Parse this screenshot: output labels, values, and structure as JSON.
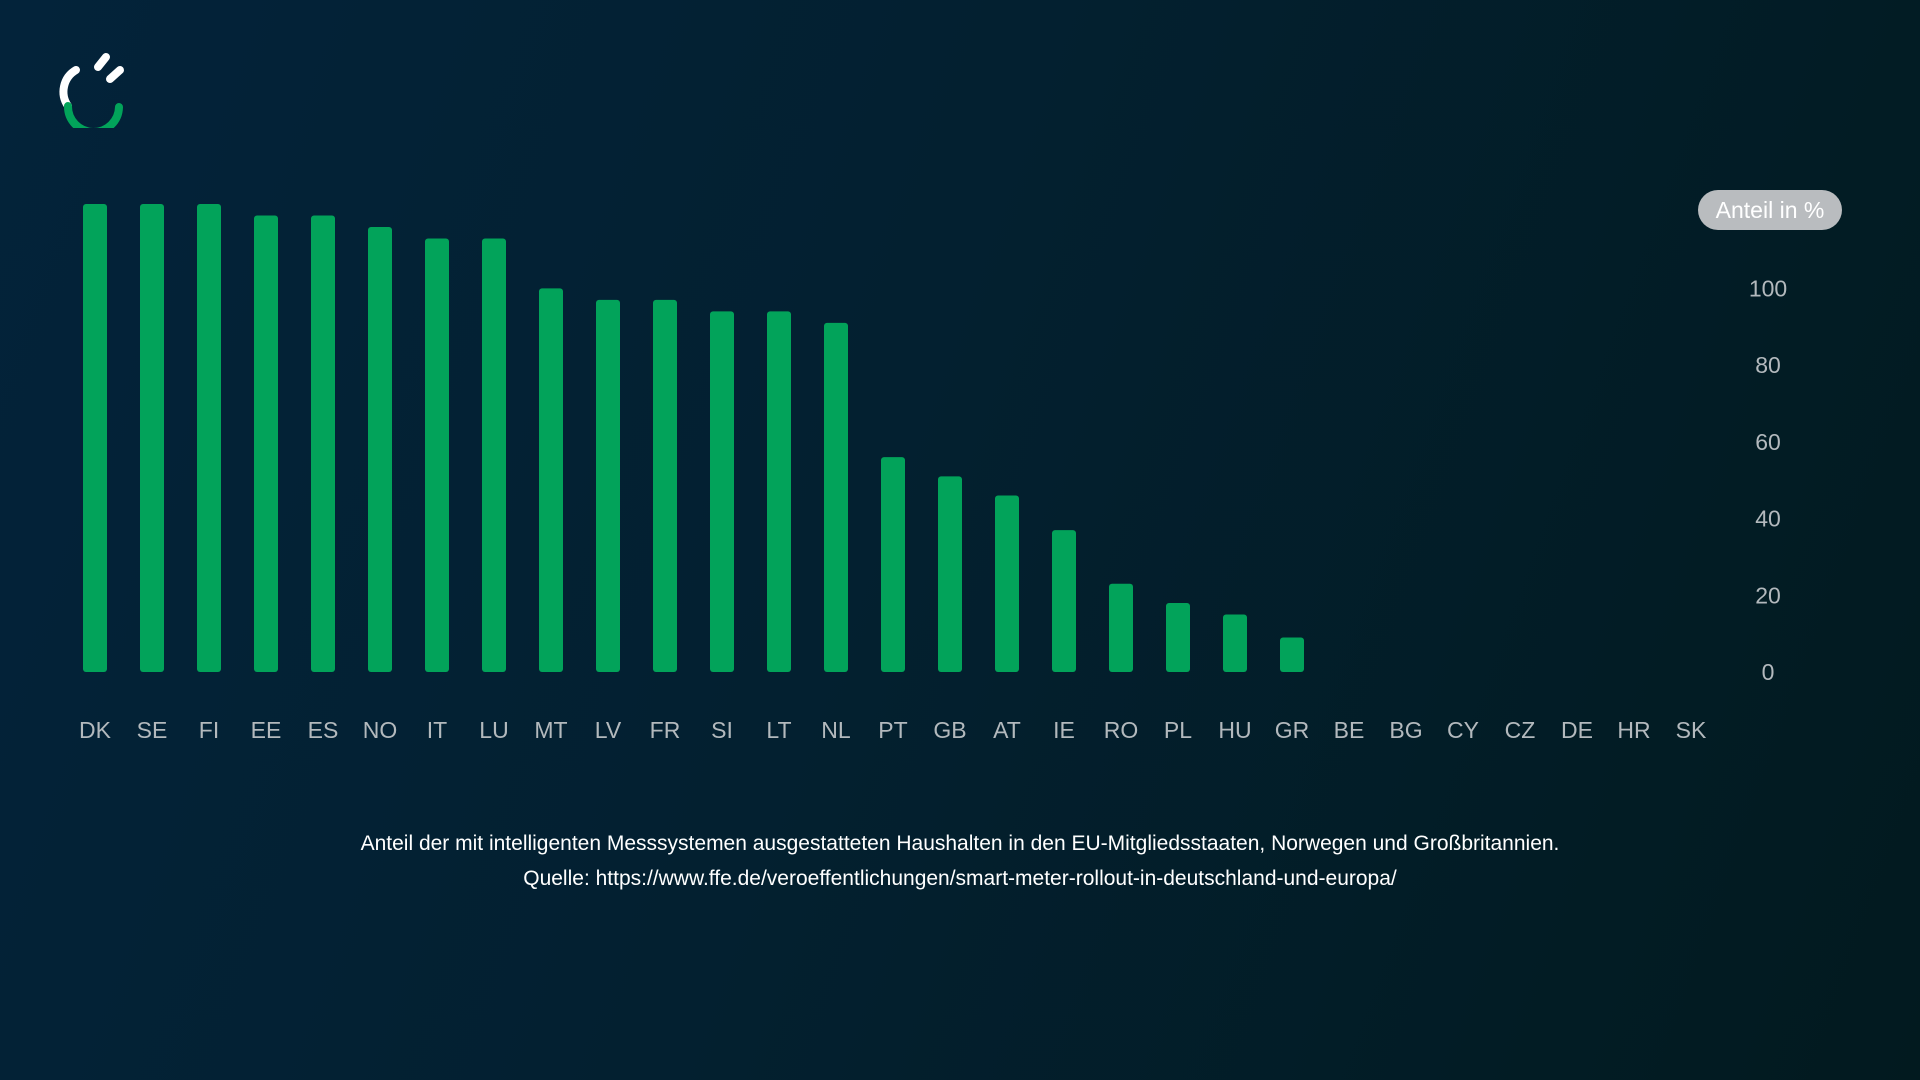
{
  "brand": {
    "logo_icon": "plug-arc-icon",
    "accent_color": "#02a35a"
  },
  "chart_data": {
    "type": "bar",
    "ylabel": "Anteil in %",
    "ylim": [
      0,
      122
    ],
    "yticks": [
      0,
      20,
      40,
      60,
      80,
      100
    ],
    "grid": false,
    "axis_position": "right",
    "bar_color": "#02a35a",
    "categories": [
      "DK",
      "SE",
      "FI",
      "EE",
      "ES",
      "NO",
      "IT",
      "LU",
      "MT",
      "LV",
      "FR",
      "SI",
      "LT",
      "NL",
      "PT",
      "GB",
      "AT",
      "IE",
      "RO",
      "PL",
      "HU",
      "GR",
      "BE",
      "BG",
      "CY",
      "CZ",
      "DE",
      "HR",
      "SK"
    ],
    "values": [
      122,
      122,
      122,
      119,
      119,
      116,
      113,
      113,
      100,
      97,
      97,
      94,
      94,
      91,
      56,
      51,
      46,
      37,
      23,
      18,
      15,
      9,
      0,
      0,
      0,
      0,
      0,
      0,
      0
    ]
  },
  "caption": {
    "line1": "Anteil der mit intelligenten Messsystemen ausgestatteten Haushalten in den EU-Mitgliedsstaaten, Norwegen und Großbritannien.",
    "line2": "Quelle: https://www.ffe.de/veroeffentlichungen/smart-meter-rollout-in-deutschland-und-europa/"
  }
}
